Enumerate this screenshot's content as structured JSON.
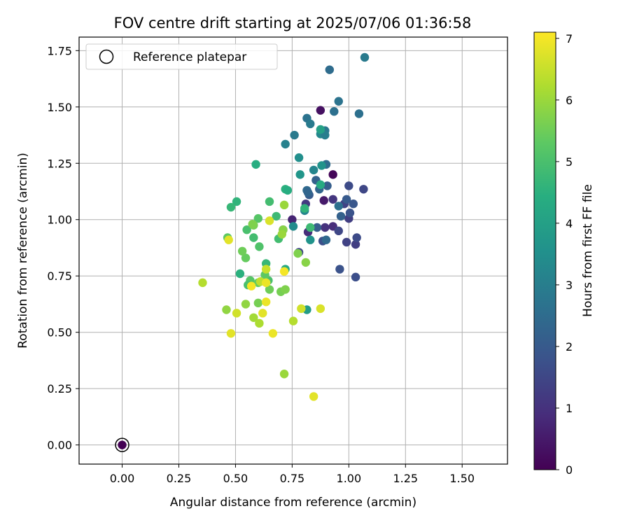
{
  "chart_data": {
    "type": "scatter",
    "title": "FOV centre drift starting at 2025/07/06 01:36:58",
    "xlabel": "Angular distance from reference (arcmin)",
    "ylabel": "Rotation from reference (arcmin)",
    "xlim": [
      -0.19,
      1.7
    ],
    "ylim": [
      -0.085,
      1.81
    ],
    "x_ticks": [
      "0.00",
      "0.25",
      "0.50",
      "0.75",
      "1.00",
      "1.25",
      "1.50"
    ],
    "y_ticks": [
      "0.00",
      "0.25",
      "0.50",
      "0.75",
      "1.00",
      "1.25",
      "1.50",
      "1.75"
    ],
    "grid": true,
    "legend": {
      "placement": "top-left",
      "entries": [
        "Reference platepar"
      ]
    },
    "colorbar": {
      "label": "Hours from first FF file",
      "range": [
        0,
        7.1
      ],
      "ticks": [
        "0",
        "1",
        "2",
        "3",
        "4",
        "5",
        "6",
        "7"
      ],
      "colormap": "viridis"
    },
    "reference_point": {
      "x": 0.0,
      "y": 0.0,
      "h": 0.0
    },
    "points": [
      {
        "x": 0.875,
        "y": 1.485,
        "h": 0.3
      },
      {
        "x": 0.93,
        "y": 1.2,
        "h": 0.1
      },
      {
        "x": 0.89,
        "y": 1.085,
        "h": 0.5
      },
      {
        "x": 0.75,
        "y": 1.0,
        "h": 0.7
      },
      {
        "x": 0.71,
        "y": 0.955,
        "h": 0.8
      },
      {
        "x": 0.82,
        "y": 0.945,
        "h": 0.9
      },
      {
        "x": 0.81,
        "y": 1.07,
        "h": 1.2
      },
      {
        "x": 0.895,
        "y": 0.965,
        "h": 1.0
      },
      {
        "x": 0.93,
        "y": 0.97,
        "h": 0.9
      },
      {
        "x": 1.0,
        "y": 1.005,
        "h": 1.3
      },
      {
        "x": 0.93,
        "y": 1.09,
        "h": 1.1
      },
      {
        "x": 0.98,
        "y": 1.07,
        "h": 1.4
      },
      {
        "x": 0.78,
        "y": 0.855,
        "h": 1.5
      },
      {
        "x": 0.99,
        "y": 0.9,
        "h": 1.4
      },
      {
        "x": 1.03,
        "y": 0.89,
        "h": 1.3
      },
      {
        "x": 1.035,
        "y": 0.92,
        "h": 1.6
      },
      {
        "x": 0.885,
        "y": 0.905,
        "h": 1.7
      },
      {
        "x": 0.955,
        "y": 0.95,
        "h": 1.5
      },
      {
        "x": 0.96,
        "y": 0.78,
        "h": 1.8
      },
      {
        "x": 1.03,
        "y": 0.745,
        "h": 1.7
      },
      {
        "x": 1.0,
        "y": 1.15,
        "h": 1.6
      },
      {
        "x": 1.065,
        "y": 1.135,
        "h": 1.5
      },
      {
        "x": 1.005,
        "y": 1.03,
        "h": 1.8
      },
      {
        "x": 1.02,
        "y": 1.07,
        "h": 1.9
      },
      {
        "x": 0.855,
        "y": 1.175,
        "h": 2.2
      },
      {
        "x": 0.905,
        "y": 1.15,
        "h": 2.1
      },
      {
        "x": 0.87,
        "y": 1.135,
        "h": 2.3
      },
      {
        "x": 0.825,
        "y": 1.11,
        "h": 2.0
      },
      {
        "x": 0.9,
        "y": 0.91,
        "h": 2.4
      },
      {
        "x": 0.86,
        "y": 0.965,
        "h": 2.1
      },
      {
        "x": 0.965,
        "y": 1.015,
        "h": 2.2
      },
      {
        "x": 0.99,
        "y": 1.09,
        "h": 2.0
      },
      {
        "x": 0.955,
        "y": 1.06,
        "h": 2.6
      },
      {
        "x": 0.9,
        "y": 1.245,
        "h": 2.5
      },
      {
        "x": 0.815,
        "y": 1.13,
        "h": 2.4
      },
      {
        "x": 0.805,
        "y": 1.04,
        "h": 3.2
      },
      {
        "x": 0.915,
        "y": 1.665,
        "h": 2.5
      },
      {
        "x": 1.07,
        "y": 1.72,
        "h": 2.9
      },
      {
        "x": 0.955,
        "y": 1.525,
        "h": 2.7
      },
      {
        "x": 0.935,
        "y": 1.48,
        "h": 2.6
      },
      {
        "x": 1.045,
        "y": 1.47,
        "h": 2.6
      },
      {
        "x": 0.815,
        "y": 1.45,
        "h": 2.7
      },
      {
        "x": 0.83,
        "y": 1.425,
        "h": 2.9
      },
      {
        "x": 0.76,
        "y": 1.375,
        "h": 2.9
      },
      {
        "x": 0.895,
        "y": 1.395,
        "h": 2.8
      },
      {
        "x": 0.875,
        "y": 1.38,
        "h": 3.3
      },
      {
        "x": 0.895,
        "y": 1.375,
        "h": 3.0
      },
      {
        "x": 0.72,
        "y": 1.335,
        "h": 3.1
      },
      {
        "x": 0.78,
        "y": 1.275,
        "h": 3.5
      },
      {
        "x": 0.845,
        "y": 1.22,
        "h": 3.2
      },
      {
        "x": 0.88,
        "y": 1.24,
        "h": 3.6
      },
      {
        "x": 0.785,
        "y": 1.2,
        "h": 3.7
      },
      {
        "x": 0.82,
        "y": 1.12,
        "h": 2.3
      },
      {
        "x": 0.875,
        "y": 1.4,
        "h": 4.0
      },
      {
        "x": 0.875,
        "y": 1.155,
        "h": 4.3
      },
      {
        "x": 0.755,
        "y": 0.97,
        "h": 3.4
      },
      {
        "x": 0.83,
        "y": 0.91,
        "h": 3.6
      },
      {
        "x": 0.815,
        "y": 0.6,
        "h": 3.9
      },
      {
        "x": 0.72,
        "y": 1.135,
        "h": 4.5
      },
      {
        "x": 0.73,
        "y": 1.13,
        "h": 4.4
      },
      {
        "x": 0.59,
        "y": 1.245,
        "h": 4.4
      },
      {
        "x": 0.805,
        "y": 1.05,
        "h": 4.6
      },
      {
        "x": 0.505,
        "y": 1.08,
        "h": 4.6
      },
      {
        "x": 0.48,
        "y": 1.055,
        "h": 4.7
      },
      {
        "x": 0.65,
        "y": 1.08,
        "h": 4.9
      },
      {
        "x": 0.68,
        "y": 1.015,
        "h": 4.8
      },
      {
        "x": 0.83,
        "y": 0.965,
        "h": 4.8
      },
      {
        "x": 0.69,
        "y": 0.915,
        "h": 4.9
      },
      {
        "x": 0.58,
        "y": 0.92,
        "h": 4.9
      },
      {
        "x": 0.55,
        "y": 0.955,
        "h": 5.0
      },
      {
        "x": 0.52,
        "y": 0.76,
        "h": 4.5
      },
      {
        "x": 0.635,
        "y": 0.805,
        "h": 4.7
      },
      {
        "x": 0.72,
        "y": 0.78,
        "h": 4.3
      },
      {
        "x": 0.605,
        "y": 0.88,
        "h": 5.1
      },
      {
        "x": 0.6,
        "y": 1.005,
        "h": 5.2
      },
      {
        "x": 0.465,
        "y": 0.92,
        "h": 5.3
      },
      {
        "x": 0.545,
        "y": 0.83,
        "h": 5.4
      },
      {
        "x": 0.53,
        "y": 0.86,
        "h": 5.5
      },
      {
        "x": 0.565,
        "y": 0.73,
        "h": 5.2
      },
      {
        "x": 0.555,
        "y": 0.71,
        "h": 5.0
      },
      {
        "x": 0.645,
        "y": 0.73,
        "h": 5.0
      },
      {
        "x": 0.63,
        "y": 0.755,
        "h": 5.3
      },
      {
        "x": 0.6,
        "y": 0.72,
        "h": 5.4
      },
      {
        "x": 0.65,
        "y": 0.69,
        "h": 5.5
      },
      {
        "x": 0.58,
        "y": 0.975,
        "h": 5.6
      },
      {
        "x": 0.575,
        "y": 0.98,
        "h": 5.7
      },
      {
        "x": 0.71,
        "y": 0.955,
        "h": 5.8
      },
      {
        "x": 0.705,
        "y": 0.935,
        "h": 6.0
      },
      {
        "x": 0.775,
        "y": 0.85,
        "h": 5.7
      },
      {
        "x": 0.81,
        "y": 0.81,
        "h": 5.8
      },
      {
        "x": 0.7,
        "y": 0.68,
        "h": 5.6
      },
      {
        "x": 0.72,
        "y": 0.69,
        "h": 5.7
      },
      {
        "x": 0.6,
        "y": 0.63,
        "h": 5.6
      },
      {
        "x": 0.545,
        "y": 0.625,
        "h": 5.9
      },
      {
        "x": 0.46,
        "y": 0.6,
        "h": 5.9
      },
      {
        "x": 0.355,
        "y": 0.72,
        "h": 6.3
      },
      {
        "x": 0.58,
        "y": 0.565,
        "h": 6.1
      },
      {
        "x": 0.605,
        "y": 0.54,
        "h": 6.2
      },
      {
        "x": 0.755,
        "y": 0.55,
        "h": 6.3
      },
      {
        "x": 0.715,
        "y": 0.315,
        "h": 6.0
      },
      {
        "x": 0.715,
        "y": 1.065,
        "h": 6.0
      },
      {
        "x": 0.79,
        "y": 0.605,
        "h": 6.6
      },
      {
        "x": 0.875,
        "y": 0.605,
        "h": 6.7
      },
      {
        "x": 0.47,
        "y": 0.91,
        "h": 6.8
      },
      {
        "x": 0.65,
        "y": 0.995,
        "h": 6.7
      },
      {
        "x": 0.635,
        "y": 0.78,
        "h": 6.5
      },
      {
        "x": 0.61,
        "y": 0.725,
        "h": 6.4
      },
      {
        "x": 0.635,
        "y": 0.72,
        "h": 6.9
      },
      {
        "x": 0.57,
        "y": 0.705,
        "h": 7.0
      },
      {
        "x": 0.715,
        "y": 0.77,
        "h": 7.0
      },
      {
        "x": 0.635,
        "y": 0.635,
        "h": 6.9
      },
      {
        "x": 0.62,
        "y": 0.585,
        "h": 6.8
      },
      {
        "x": 0.505,
        "y": 0.585,
        "h": 6.6
      },
      {
        "x": 0.48,
        "y": 0.495,
        "h": 6.8
      },
      {
        "x": 0.665,
        "y": 0.495,
        "h": 6.9
      },
      {
        "x": 0.845,
        "y": 0.215,
        "h": 6.8
      }
    ]
  }
}
